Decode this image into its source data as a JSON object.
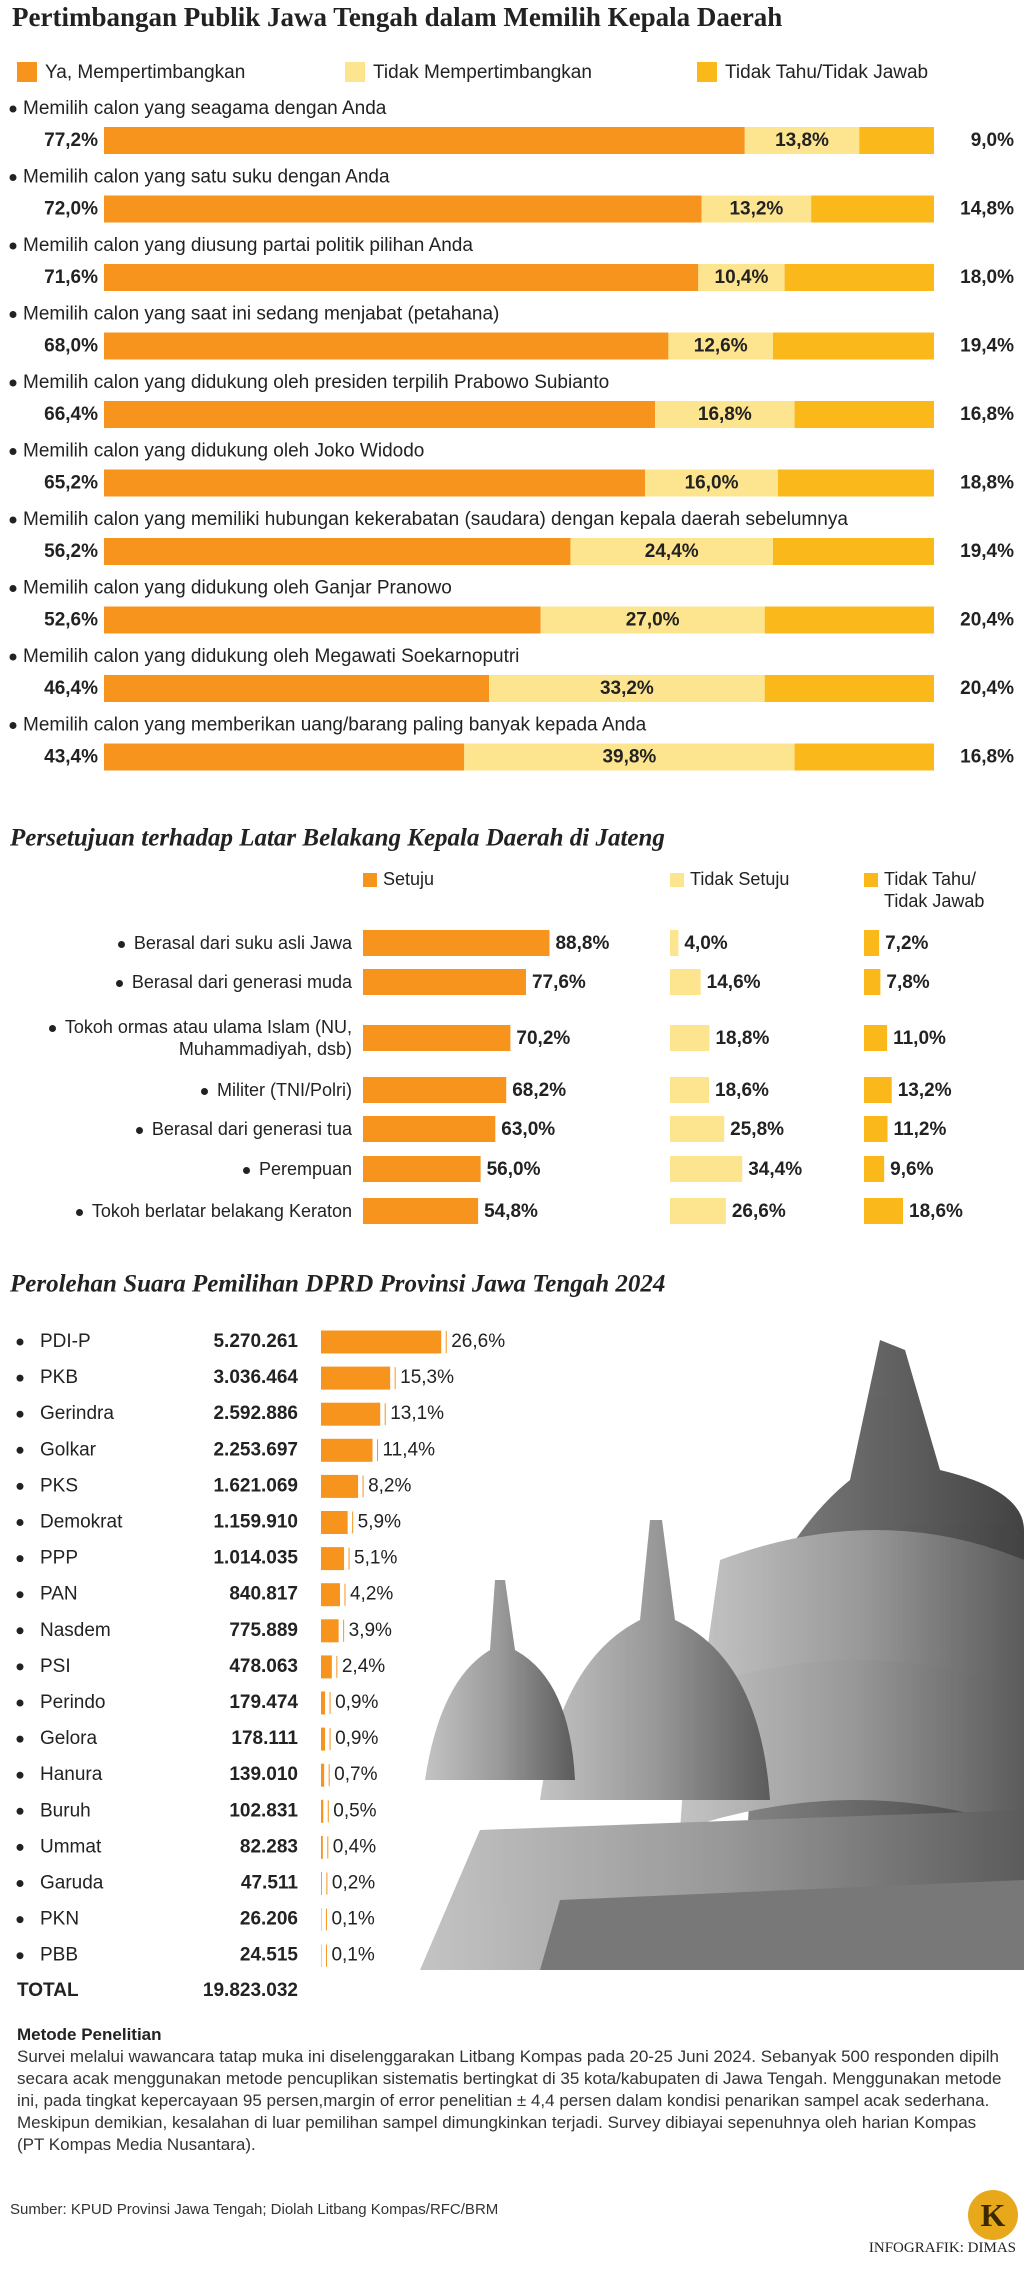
{
  "chart_data": [
    {
      "type": "bar",
      "stacked": true,
      "orientation": "horizontal",
      "title": "Pertimbangan Publik Jawa Tengah dalam Memilih Kepala Daerah",
      "categories": [
        "Memilih calon yang seagama dengan Anda",
        "Memilih calon yang satu suku dengan Anda",
        "Memilih calon yang diusung partai politik pilihan Anda",
        "Memilih calon yang saat ini sedang menjabat (petahana)",
        "Memilih calon yang didukung oleh presiden terpilih Prabowo Subianto",
        "Memilih calon yang didukung oleh Joko Widodo",
        "Memilih calon yang memiliki hubungan kekerabatan (saudara) dengan kepala daerah sebelumnya",
        "Memilih calon yang didukung oleh Ganjar Pranowo",
        "Memilih calon yang didukung oleh Megawati Soekarnoputri",
        "Memilih calon yang memberikan uang/barang paling banyak kepada Anda"
      ],
      "xlim": [
        0,
        100
      ],
      "series": [
        {
          "name": "Ya, Mempertimbangkan",
          "color": "#f7941d",
          "values": [
            77.2,
            72.0,
            71.6,
            68.0,
            66.4,
            65.2,
            56.2,
            52.6,
            46.4,
            43.4
          ],
          "value_labels": [
            "77,2%",
            "72,0%",
            "71,6%",
            "68,0%",
            "66,4%",
            "65,2%",
            "56,2%",
            "52,6%",
            "46,4%",
            "43,4%"
          ]
        },
        {
          "name": "Tidak Mempertimbangkan",
          "color": "#fde58f",
          "values": [
            13.8,
            13.2,
            10.4,
            12.6,
            16.8,
            16.0,
            24.4,
            27.0,
            33.2,
            39.8
          ],
          "value_labels": [
            "13,8%",
            "13,2%",
            "10,4%",
            "12,6%",
            "16,8%",
            "16,0%",
            "24,4%",
            "27,0%",
            "33,2%",
            "39,8%"
          ]
        },
        {
          "name": "Tidak Tahu/Tidak Jawab",
          "color": "#fbb81a",
          "values": [
            9.0,
            14.8,
            18.0,
            19.4,
            16.8,
            18.8,
            19.4,
            20.4,
            20.4,
            16.8
          ],
          "value_labels": [
            "9,0%",
            "14,8%",
            "18,0%",
            "19,4%",
            "16,8%",
            "18,8%",
            "19,4%",
            "20,4%",
            "20,4%",
            "16,8%"
          ]
        }
      ]
    },
    {
      "type": "bar",
      "panels": true,
      "orientation": "horizontal",
      "title": "Persetujuan terhadap Latar Belakang Kepala Daerah di Jateng",
      "categories": [
        "Berasal dari suku asli Jawa",
        "Berasal dari generasi muda",
        "Tokoh ormas atau ulama Islam (NU, Muhammadiyah, dsb)",
        "Militer (TNI/Polri)",
        "Berasal dari generasi tua",
        "Perempuan",
        "Tokoh berlatar belakang Keraton"
      ],
      "xlim": [
        0,
        100
      ],
      "series": [
        {
          "name": "Setuju",
          "color": "#f7941d",
          "values": [
            88.8,
            77.6,
            70.2,
            68.2,
            63.0,
            56.0,
            54.8
          ],
          "value_labels": [
            "88,8%",
            "77,6%",
            "70,2%",
            "68,2%",
            "63,0%",
            "56,0%",
            "54,8%"
          ]
        },
        {
          "name": "Tidak Setuju",
          "color": "#fde58f",
          "values": [
            4.0,
            14.6,
            18.8,
            18.6,
            25.8,
            34.4,
            26.6
          ],
          "value_labels": [
            "4,0%",
            "14,6%",
            "18,8%",
            "18,6%",
            "25,8%",
            "34,4%",
            "26,6%"
          ]
        },
        {
          "name": "Tidak Tahu/ Tidak Jawab",
          "color": "#fbb81a",
          "values": [
            7.2,
            7.8,
            11.0,
            13.2,
            11.2,
            9.6,
            18.6
          ],
          "value_labels": [
            "7,2%",
            "7,8%",
            "11,0%",
            "13,2%",
            "11,2%",
            "9,6%",
            "18,6%"
          ]
        }
      ]
    },
    {
      "type": "bar",
      "orientation": "horizontal",
      "title": "Perolehan Suara Pemilihan DPRD Provinsi Jawa Tengah 2024",
      "color": "#f7941d",
      "categories": [
        "PDI-P",
        "PKB",
        "Gerindra",
        "Golkar",
        "PKS",
        "Demokrat",
        "PPP",
        "PAN",
        "Nasdem",
        "PSI",
        "Perindo",
        "Gelora",
        "Hanura",
        "Buruh",
        "Ummat",
        "Garuda",
        "PKN",
        "PBB"
      ],
      "vote_counts": [
        "5.270.261",
        "3.036.464",
        "2.592.886",
        "2.253.697",
        "1.621.069",
        "1.159.910",
        "1.014.035",
        "840.817",
        "775.889",
        "478.063",
        "179.474",
        "178.111",
        "139.010",
        "102.831",
        "82.283",
        "47.511",
        "26.206",
        "24.515"
      ],
      "values": [
        26.6,
        15.3,
        13.1,
        11.4,
        8.2,
        5.9,
        5.1,
        4.2,
        3.9,
        2.4,
        0.9,
        0.9,
        0.7,
        0.5,
        0.4,
        0.2,
        0.1,
        0.1
      ],
      "value_labels": [
        "26,6%",
        "15,3%",
        "13,1%",
        "11,4%",
        "8,2%",
        "5,9%",
        "5,1%",
        "4,2%",
        "3,9%",
        "2,4%",
        "0,9%",
        "0,9%",
        "0,7%",
        "0,5%",
        "0,4%",
        "0,2%",
        "0,1%",
        "0,1%"
      ],
      "xlim": [
        0,
        100
      ],
      "total_label": "TOTAL",
      "total": "19.823.032"
    }
  ],
  "method": {
    "title": "Metode Penelitian",
    "text": "Survei melalui wawancara tatap muka ini diselenggarakan Litbang Kompas pada 20-25 Juni 2024. Sebanyak 500 responden dipilh secara acak menggunakan metode pencuplikan sistematis bertingkat di  35 kota/kabupaten di Jawa Tengah. Menggunakan metode ini, pada tingkat kepercayaan 95 persen,margin of error penelitian ± 4,4 persen dalam kondisi penarikan sampel acak sederhana. Meskipun demikian, kesalahan di luar pemilihan sampel dimungkinkan terjadi. Survey dibiayai sepenuhnya oleh harian Kompas (PT Kompas Media Nusantara)."
  },
  "source": "Sumber: KPUD Provinsi Jawa Tengah; Diolah Litbang Kompas/RFC/BRM",
  "credit": "INFOGRAFIK: DIMAS",
  "logo": "K"
}
